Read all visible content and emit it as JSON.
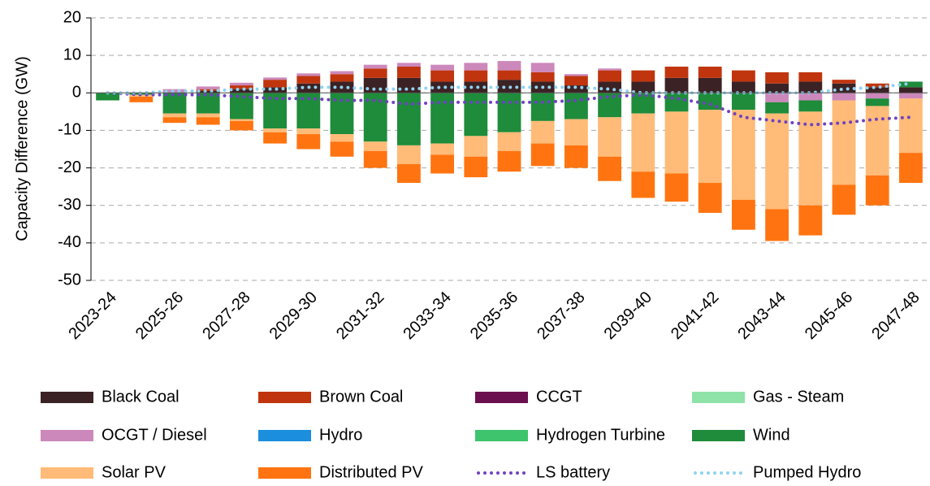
{
  "chart_data": {
    "type": "stacked-bar-line",
    "y_label": "Capacity Difference (GW)",
    "categories": [
      "2023-24",
      null,
      "2025-26",
      null,
      "2027-28",
      null,
      "2029-30",
      null,
      "2031-32",
      null,
      "2033-34",
      null,
      "2035-36",
      null,
      "2037-38",
      null,
      "2039-40",
      null,
      "2041-42",
      null,
      "2043-44",
      null,
      "2045-46",
      null,
      "2047-48"
    ],
    "ylim": [
      -50,
      20
    ],
    "yticks": [
      20,
      10,
      0,
      -10,
      -20,
      -30,
      -40,
      -50
    ],
    "grid": true,
    "series": [
      {
        "name": "Black Coal",
        "type": "bar",
        "color": "#3b2224",
        "values": [
          0,
          0,
          0,
          0.5,
          1,
          1.5,
          2.5,
          3,
          4,
          4,
          3,
          3,
          3.5,
          3,
          2,
          3,
          3,
          4,
          4,
          3,
          2.5,
          3,
          2.5,
          1.5,
          1.5
        ]
      },
      {
        "name": "Brown Coal",
        "type": "bar",
        "color": "#c0350e",
        "values": [
          0,
          0,
          0,
          0.5,
          1,
          2,
          2,
          2,
          2.5,
          3,
          3,
          3,
          2.5,
          2.5,
          2.5,
          3,
          3,
          3,
          3,
          3,
          3,
          2.5,
          1,
          1,
          0
        ]
      },
      {
        "name": "CCGT",
        "type": "bar",
        "color": "#6b0f4f",
        "values": [
          0,
          0,
          0,
          0,
          0,
          0,
          0,
          0,
          0,
          0,
          0,
          0,
          0,
          0,
          0,
          0,
          0,
          0,
          0,
          0,
          0,
          0,
          0,
          0,
          0
        ]
      },
      {
        "name": "Gas - Steam",
        "type": "bar",
        "color": "#8fe3a8",
        "values": [
          0,
          0,
          0,
          0,
          0,
          0,
          0,
          0,
          0,
          0,
          0,
          0,
          0,
          0,
          0,
          0,
          0,
          0,
          0,
          0,
          0,
          0,
          0,
          0,
          0
        ]
      },
      {
        "name": "OCGT / Diesel",
        "type": "bar",
        "color": "#cc88bb",
        "values": [
          0,
          0,
          1,
          0.7,
          0.7,
          0.6,
          0.7,
          0.8,
          1,
          1,
          1.5,
          2,
          2.5,
          2.5,
          0.5,
          0.5,
          0,
          0,
          0,
          0,
          -2.5,
          -2,
          -2,
          -1.5,
          -1.5
        ]
      },
      {
        "name": "Hydro",
        "type": "bar",
        "color": "#1b8ede",
        "values": [
          0,
          0,
          0,
          0,
          0,
          0,
          0,
          0,
          0,
          0,
          0,
          0,
          0,
          0,
          0,
          0,
          0,
          0,
          0,
          0,
          0,
          0,
          0,
          0,
          0
        ]
      },
      {
        "name": "Hydrogen Turbine",
        "type": "bar",
        "color": "#3ec46d",
        "values": [
          0,
          0,
          0,
          0,
          0,
          0,
          0,
          0,
          0,
          0,
          0,
          0,
          0,
          0,
          0,
          0,
          0,
          0,
          0,
          0,
          0,
          0,
          0,
          0,
          0
        ]
      },
      {
        "name": "Wind",
        "type": "bar",
        "color": "#1e8c3a",
        "values": [
          -2,
          -0.5,
          -5.5,
          -5.5,
          -7,
          -9.5,
          -9.5,
          -11,
          -13,
          -14,
          -13.5,
          -11.5,
          -10.5,
          -7.5,
          -7,
          -6.5,
          -5.5,
          -5,
          -4.5,
          -4.5,
          -3,
          -3,
          0,
          -2,
          1.5
        ]
      },
      {
        "name": "Solar PV",
        "type": "bar",
        "color": "#ffbb77",
        "values": [
          0,
          -0.5,
          -1,
          -1,
          -0.5,
          -1,
          -1.5,
          -2,
          -2.5,
          -5,
          -3,
          -5.5,
          -5,
          -6,
          -7,
          -10.5,
          -15.5,
          -16.5,
          -19.5,
          -24,
          -25.5,
          -25,
          -22.5,
          -18.5,
          -14.5
        ]
      },
      {
        "name": "Distributed PV",
        "type": "bar",
        "color": "#ff7410",
        "values": [
          0,
          -1.5,
          -1.5,
          -2,
          -2.5,
          -3,
          -4,
          -4,
          -4.5,
          -5,
          -5,
          -5.5,
          -5.5,
          -6,
          -6,
          -6.5,
          -7,
          -7.5,
          -8,
          -8,
          -8.5,
          -8,
          -8,
          -8,
          -8
        ]
      },
      {
        "name": "LS battery",
        "type": "line",
        "color": "#6f42c1",
        "values": [
          0,
          -0.5,
          -0.5,
          -0.5,
          -1,
          -1.5,
          -1.5,
          -2,
          -2,
          -3,
          -2.5,
          -2.5,
          -2.5,
          -2.5,
          -2,
          -1,
          -0.5,
          -1.5,
          -3,
          -6.5,
          -7.5,
          -8.5,
          -8,
          -7,
          -6.5
        ]
      },
      {
        "name": "Pumped Hydro",
        "type": "line",
        "color": "#8fd3f0",
        "values": [
          0,
          0,
          0.5,
          0.5,
          1,
          1,
          1.5,
          1.5,
          1,
          1,
          1.5,
          1.5,
          1.5,
          1.5,
          1.5,
          1,
          0,
          0,
          0,
          0,
          0,
          0,
          1,
          1.5,
          2.5
        ]
      }
    ]
  }
}
